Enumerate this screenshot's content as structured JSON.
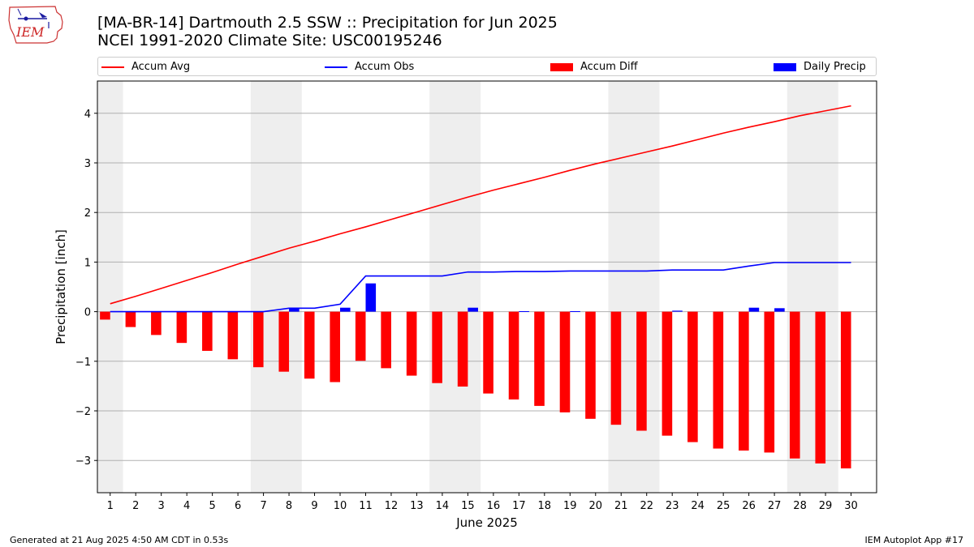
{
  "header": {
    "title_line1": "[MA-BR-14] Dartmouth 2.5 SSW :: Precipitation for Jun 2025",
    "title_line2": "NCEI 1991-2020 Climate Site: USC00195246"
  },
  "logo": {
    "text": "IEM",
    "icon": "iem-iowa-logo"
  },
  "legend": {
    "items": [
      {
        "label": "Accum Avg",
        "kind": "line",
        "color": "#ff0000"
      },
      {
        "label": "Accum Obs",
        "kind": "line",
        "color": "#0000ff"
      },
      {
        "label": "Accum Diff",
        "kind": "bar",
        "color": "#ff0000"
      },
      {
        "label": "Daily Precip",
        "kind": "bar",
        "color": "#0000ff"
      }
    ]
  },
  "footer": {
    "left": "Generated at 21 Aug 2025 4:50 AM CDT in 0.53s",
    "right": "IEM Autoplot App #17"
  },
  "colors": {
    "avg": "#ff0000",
    "obs": "#0000ff",
    "diff": "#ff0000",
    "daily": "#0000ff",
    "weekend": "#eeeeee",
    "grid": "#b0b0b0"
  },
  "chart_data": {
    "type": "bar",
    "xlabel": "June 2025",
    "ylabel": "Precipitation [inch]",
    "xlim": [
      0.5,
      31
    ],
    "ylim": [
      -3.65,
      4.65
    ],
    "grid": true,
    "legend_position": "top",
    "yticks": [
      -3,
      -2,
      -1,
      0,
      1,
      2,
      3,
      4
    ],
    "x": [
      1,
      2,
      3,
      4,
      5,
      6,
      7,
      8,
      9,
      10,
      11,
      12,
      13,
      14,
      15,
      16,
      17,
      18,
      19,
      20,
      21,
      22,
      23,
      24,
      25,
      26,
      27,
      28,
      29,
      30
    ],
    "shaded_weekend_days": [
      [
        0.5,
        1.5
      ],
      [
        6.5,
        8.5
      ],
      [
        13.5,
        15.5
      ],
      [
        20.5,
        22.5
      ],
      [
        27.5,
        29.5
      ]
    ],
    "series": [
      {
        "name": "Accum Avg",
        "type": "line",
        "values": [
          0.16,
          0.31,
          0.47,
          0.63,
          0.79,
          0.96,
          1.12,
          1.28,
          1.42,
          1.57,
          1.71,
          1.86,
          2.01,
          2.16,
          2.31,
          2.45,
          2.58,
          2.71,
          2.85,
          2.98,
          3.1,
          3.22,
          3.34,
          3.47,
          3.6,
          3.72,
          3.83,
          3.95,
          4.05,
          4.15
        ]
      },
      {
        "name": "Accum Obs",
        "type": "line",
        "values": [
          0.0,
          0.0,
          0.0,
          0.0,
          0.0,
          0.0,
          0.0,
          0.07,
          0.07,
          0.15,
          0.72,
          0.72,
          0.72,
          0.72,
          0.8,
          0.8,
          0.81,
          0.81,
          0.82,
          0.82,
          0.82,
          0.82,
          0.84,
          0.84,
          0.84,
          0.92,
          0.99,
          0.99,
          0.99,
          0.99
        ]
      },
      {
        "name": "Accum Diff",
        "type": "bar",
        "values": [
          -0.16,
          -0.31,
          -0.47,
          -0.63,
          -0.79,
          -0.96,
          -1.12,
          -1.21,
          -1.35,
          -1.42,
          -0.99,
          -1.14,
          -1.29,
          -1.44,
          -1.51,
          -1.65,
          -1.77,
          -1.9,
          -2.03,
          -2.16,
          -2.28,
          -2.4,
          -2.5,
          -2.63,
          -2.76,
          -2.8,
          -2.84,
          -2.96,
          -3.06,
          -3.16
        ]
      },
      {
        "name": "Daily Precip",
        "type": "bar",
        "values": [
          0,
          0,
          0,
          0,
          0,
          0,
          0,
          0.07,
          0,
          0.08,
          0.57,
          0,
          0,
          0,
          0.08,
          0,
          0.01,
          0,
          0.01,
          0,
          0,
          0,
          0.02,
          0,
          0,
          0.08,
          0.07,
          0,
          0,
          0
        ]
      }
    ]
  }
}
